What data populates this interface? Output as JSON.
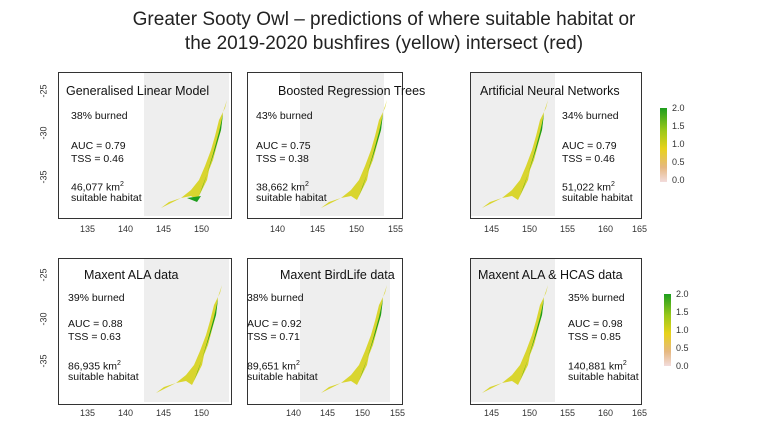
{
  "title": {
    "line1": "Greater Sooty Owl – predictions of where suitable habitat or",
    "line2": "the 2019-2020 bushfires (yellow) intersect (red)"
  },
  "panels": [
    {
      "name": "Generalised Linear Model",
      "burned": "38% burned",
      "auc": "AUC = 0.79",
      "tss": "TSS = 0.46",
      "area": "46,077 km",
      "sup": "2",
      "habitat": "suitable habitat",
      "xticks": [
        "135",
        "140",
        "145",
        "150"
      ]
    },
    {
      "name": "Boosted Regression Trees",
      "burned": "43% burned",
      "auc": "AUC = 0.75",
      "tss": "TSS = 0.38",
      "area": "38,662 km",
      "sup": "2",
      "habitat": "suitable habitat",
      "xticks": [
        "140",
        "145",
        "150",
        "155"
      ]
    },
    {
      "name": "Artificial Neural Networks",
      "burned": "34% burned",
      "auc": "AUC = 0.79",
      "tss": "TSS = 0.46",
      "area": "51,022 km",
      "sup": "2",
      "habitat": "suitable habitat",
      "xticks": [
        "145",
        "150",
        "155",
        "160",
        "165"
      ]
    },
    {
      "name": "Maxent ALA data",
      "burned": "39% burned",
      "auc": "AUC = 0.88",
      "tss": "TSS = 0.63",
      "area": "86,935 km",
      "sup": "2",
      "habitat": "suitable habitat",
      "xticks": [
        "135",
        "140",
        "145",
        "150"
      ]
    },
    {
      "name": "Maxent BirdLife data",
      "burned": "38% burned",
      "auc": "AUC = 0.92",
      "tss": "TSS = 0.71",
      "area": "89,651 km",
      "sup": "2",
      "habitat": "suitable habitat",
      "xticks": [
        "140",
        "145",
        "150",
        "155"
      ]
    },
    {
      "name": "Maxent ALA & HCAS data",
      "burned": "35% burned",
      "auc": "AUC = 0.98",
      "tss": "TSS = 0.85",
      "area": "140,881 km",
      "sup": "2",
      "habitat": "suitable habitat",
      "xticks": [
        "145",
        "150",
        "155",
        "160",
        "165"
      ]
    }
  ],
  "yticks": [
    "-25",
    "-30",
    "-35"
  ],
  "legend": {
    "ticks": [
      "2.0",
      "1.5",
      "1.0",
      "0.5",
      "0.0"
    ]
  },
  "colors": {
    "green": "#1e9e1e",
    "yellow": "#d6d21a",
    "shade": "#eeeeee"
  }
}
